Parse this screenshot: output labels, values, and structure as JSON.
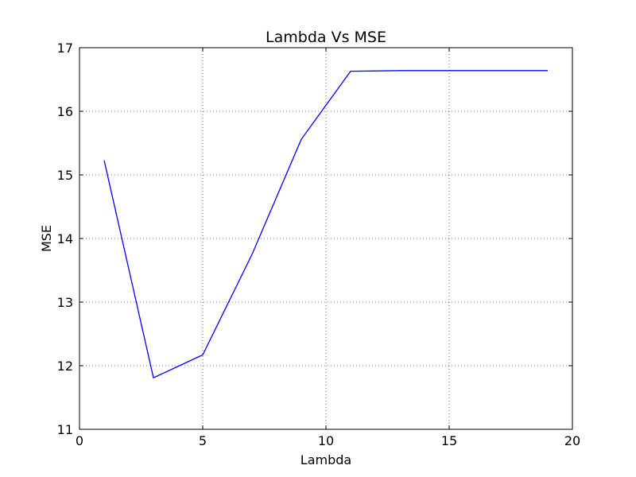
{
  "chart_data": {
    "type": "line",
    "title": "Lambda Vs MSE",
    "xlabel": "Lambda",
    "ylabel": "MSE",
    "xlim": [
      0,
      20
    ],
    "ylim": [
      11,
      17
    ],
    "grid": true,
    "x_ticks": [
      "0",
      "5",
      "10",
      "15",
      "20"
    ],
    "y_ticks": [
      "11",
      "12",
      "13",
      "14",
      "15",
      "16",
      "17"
    ],
    "series": [
      {
        "color": "#0000ff",
        "x": [
          1,
          3,
          5,
          7,
          9,
          11,
          13,
          15,
          17,
          19
        ],
        "y": [
          15.23,
          11.81,
          12.17,
          13.75,
          15.56,
          16.63,
          16.64,
          16.64,
          16.64,
          16.64
        ]
      }
    ]
  }
}
